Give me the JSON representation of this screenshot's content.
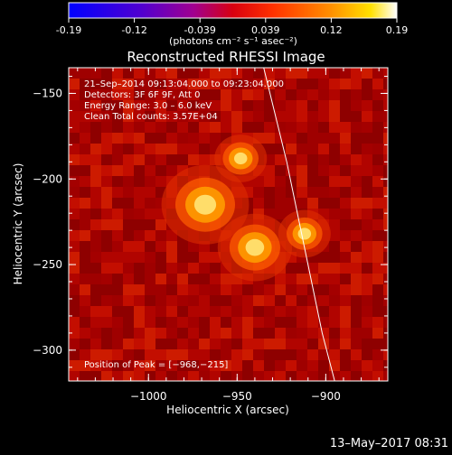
{
  "colorbar": {
    "tick_labels": [
      "-0.19",
      "-0.12",
      "-0.039",
      "0.039",
      "0.12",
      "0.19"
    ],
    "units_label": "(photons cm⁻² s⁻¹ asec⁻²)",
    "range": [
      -0.19,
      0.19
    ]
  },
  "chart_data": {
    "type": "heatmap",
    "title": "Reconstructed RHESSI Image",
    "xlabel": "Heliocentric X (arcsec)",
    "ylabel": "Heliocentric Y (arcsec)",
    "xlim": [
      -1045,
      -865
    ],
    "ylim": [
      -318,
      -135
    ],
    "x_ticks": [
      -1000,
      -950,
      -900
    ],
    "x_tick_labels": [
      "−1000",
      "−950",
      "−900"
    ],
    "y_ticks": [
      -150,
      -200,
      -250,
      -300
    ],
    "y_tick_labels": [
      "−150",
      "−200",
      "−250",
      "−300"
    ],
    "sources": [
      {
        "name": "peak",
        "x": -968,
        "y": -215
      },
      {
        "x": -940,
        "y": -240
      },
      {
        "x": -912,
        "y": -232
      },
      {
        "x": -948,
        "y": -188
      }
    ],
    "limb": [
      [
        -935,
        -135
      ],
      [
        -922,
        -190
      ],
      [
        -912,
        -240
      ],
      [
        -902,
        -290
      ],
      [
        -895,
        -318
      ]
    ],
    "annotations": {
      "time": "21–Sep–2014 09:13:04.000 to 09:23:04.000",
      "detectors": "Detectors: 3F 6F 9F, Att 0",
      "energy": "Energy Range: 3.0 – 6.0 keV",
      "clean": "Clean    Total counts: 3.57E+04",
      "peak": "Position of Peak = [−968,−215]"
    }
  },
  "footer": {
    "timestamp": "13–May–2017 08:31"
  }
}
